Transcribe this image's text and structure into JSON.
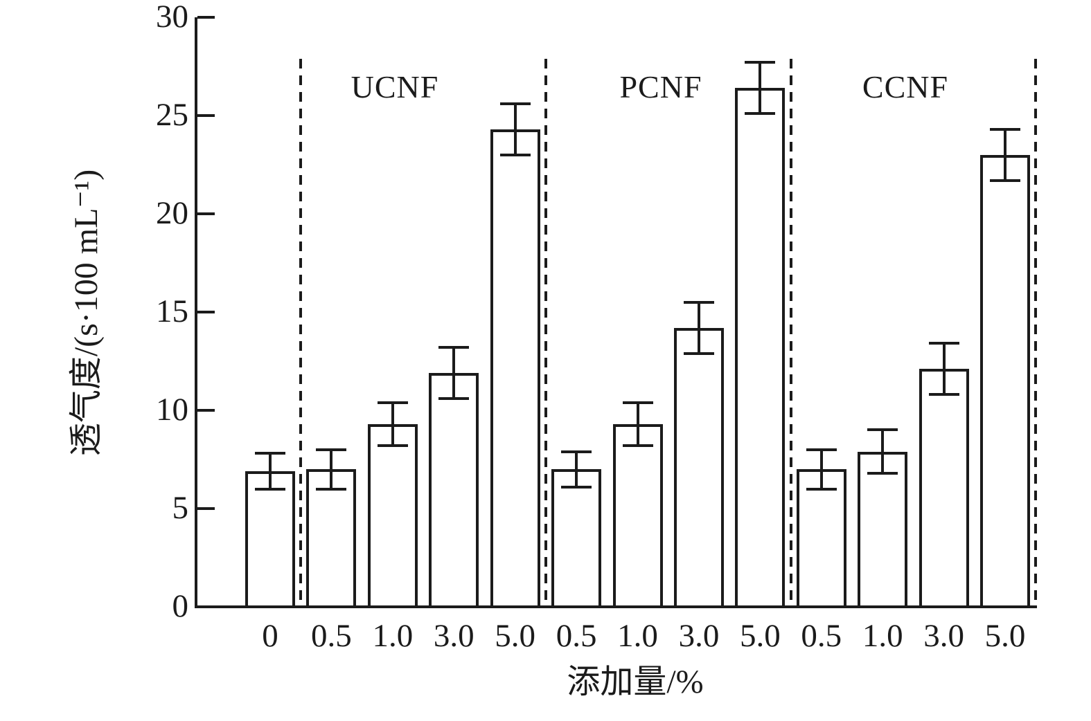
{
  "chart_data": {
    "type": "bar",
    "title": "",
    "ylabel": "透气度/(s·100 mL⁻¹)",
    "xlabel": "添加量/%",
    "ylim": [
      0,
      30
    ],
    "yticks": [
      0,
      5,
      10,
      15,
      20,
      25,
      30
    ],
    "grid": false,
    "legend": "none",
    "bar_fill": "#ffffff",
    "stroke_color": "#1b1b1b",
    "groups": [
      {
        "name": "",
        "bars": [
          {
            "label": "0",
            "value": 6.9,
            "error": 0.9
          }
        ]
      },
      {
        "name": "UCNF",
        "bars": [
          {
            "label": "0.5",
            "value": 7.0,
            "error": 1.0
          },
          {
            "label": "1.0",
            "value": 9.3,
            "error": 1.1
          },
          {
            "label": "3.0",
            "value": 11.9,
            "error": 1.3
          },
          {
            "label": "5.0",
            "value": 24.3,
            "error": 1.3
          }
        ]
      },
      {
        "name": "PCNF",
        "bars": [
          {
            "label": "0.5",
            "value": 7.0,
            "error": 0.9
          },
          {
            "label": "1.0",
            "value": 9.3,
            "error": 1.1
          },
          {
            "label": "3.0",
            "value": 14.2,
            "error": 1.3
          },
          {
            "label": "5.0",
            "value": 26.4,
            "error": 1.3
          }
        ]
      },
      {
        "name": "CCNF",
        "bars": [
          {
            "label": "0.5",
            "value": 7.0,
            "error": 1.0
          },
          {
            "label": "1.0",
            "value": 7.9,
            "error": 1.1
          },
          {
            "label": "3.0",
            "value": 12.1,
            "error": 1.3
          },
          {
            "label": "5.0",
            "value": 23.0,
            "error": 1.3
          }
        ]
      }
    ]
  }
}
